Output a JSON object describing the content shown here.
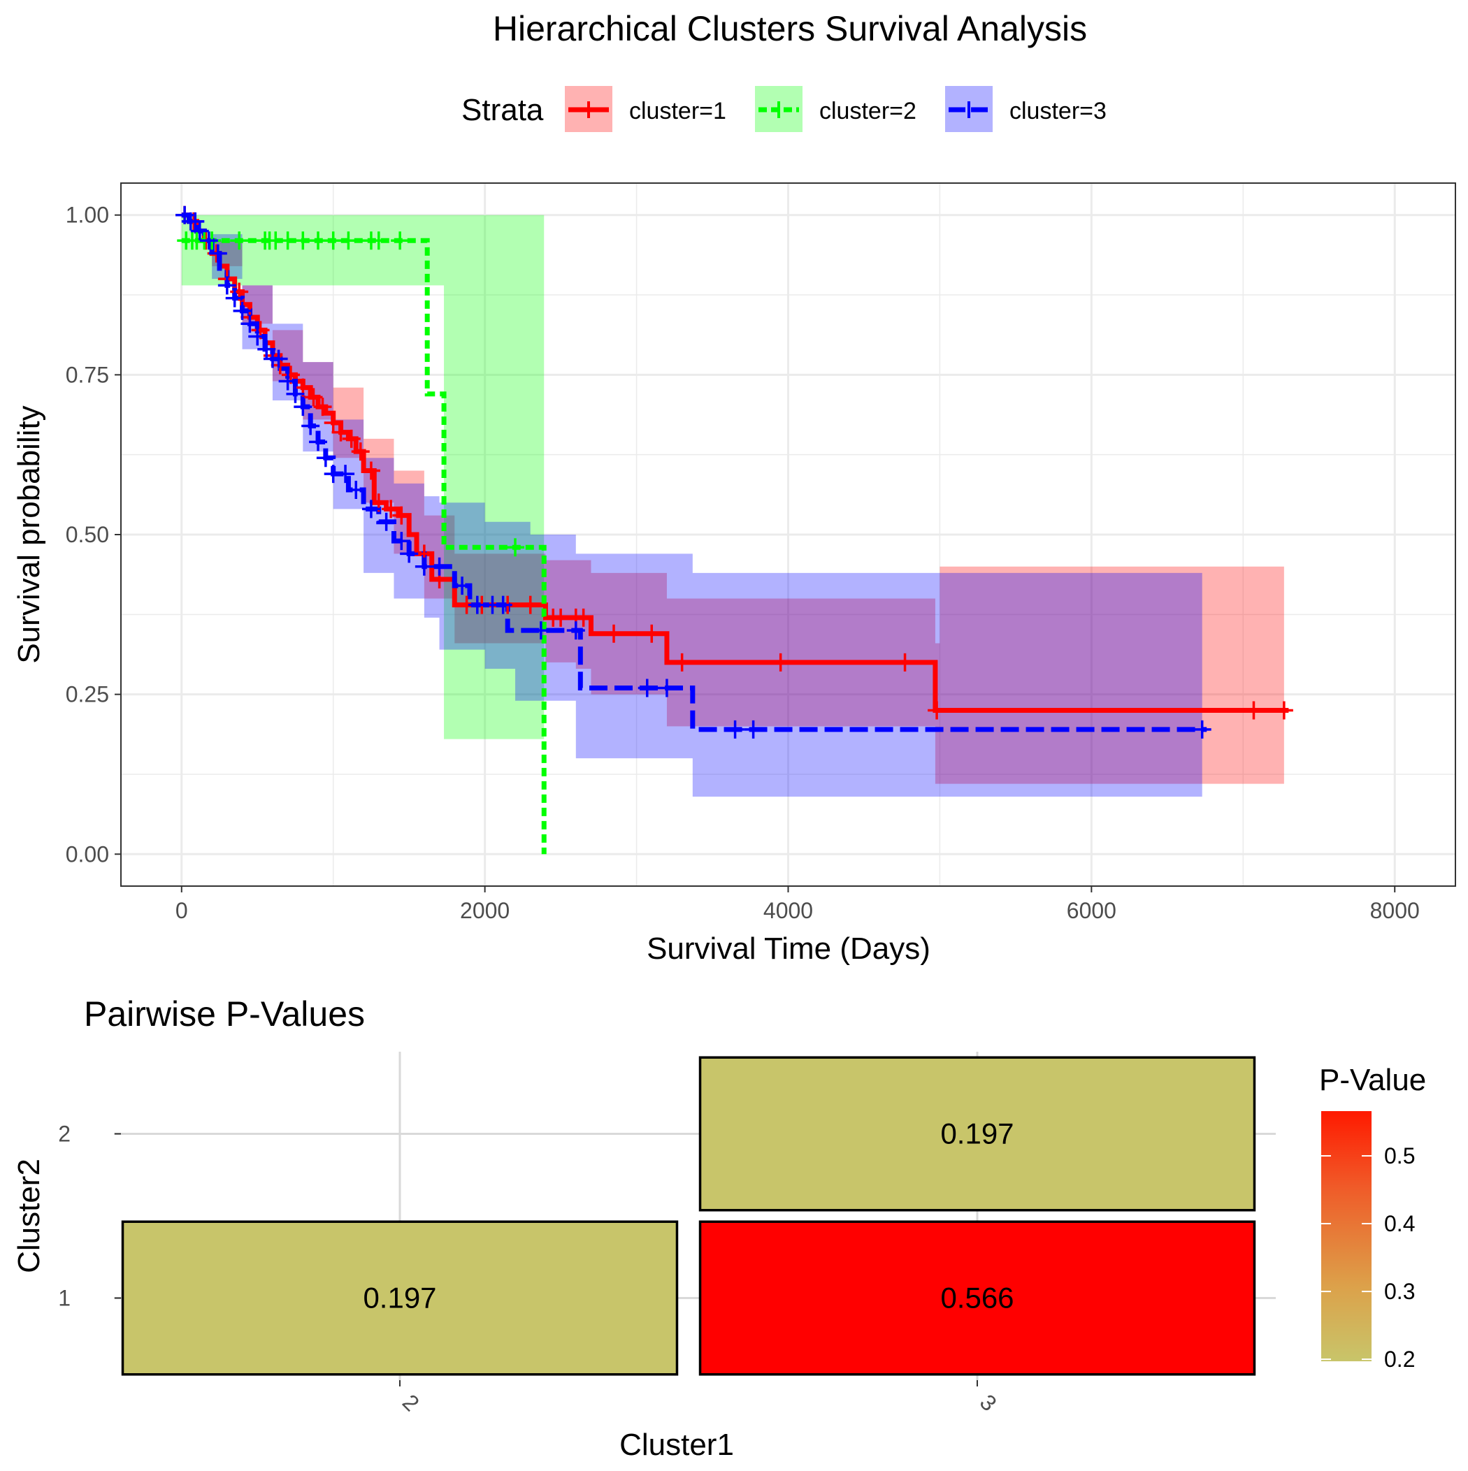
{
  "figure_title": "Hierarchical Clusters Survival Analysis",
  "colors": {
    "cluster1": "#ff0000",
    "cluster2": "#00ff00",
    "cluster3": "#0000ff",
    "grid": "#ebebeb",
    "heat_low": "#c8c56a",
    "heat_high": "#ff0000"
  },
  "chart_data": [
    {
      "type": "line",
      "subtype": "kaplan-meier",
      "title": "",
      "xlabel": "Survival Time (Days)",
      "ylabel": "Survival probability",
      "xlim": [
        -400,
        8400
      ],
      "ylim": [
        -0.05,
        1.05
      ],
      "xticks": [
        0,
        2000,
        4000,
        6000,
        8000
      ],
      "yticks": [
        0,
        0.25,
        0.5,
        0.75,
        1
      ],
      "xtick_labels": [
        "0",
        "2000",
        "4000",
        "6000",
        "8000"
      ],
      "ytick_labels": [
        "0.00",
        "0.25",
        "0.50",
        "0.75",
        "1.00"
      ],
      "grid": true,
      "legend": {
        "title": "Strata",
        "position": "top",
        "labels": [
          "cluster=1",
          "cluster=2",
          "cluster=3"
        ]
      },
      "series": [
        {
          "name": "cluster=1",
          "color": "#ff0000",
          "line": "solid",
          "steps": [
            [
              0,
              1.0
            ],
            [
              50,
              0.99
            ],
            [
              100,
              0.975
            ],
            [
              150,
              0.96
            ],
            [
              200,
              0.94
            ],
            [
              250,
              0.92
            ],
            [
              300,
              0.9
            ],
            [
              350,
              0.88
            ],
            [
              400,
              0.86
            ],
            [
              450,
              0.84
            ],
            [
              500,
              0.82
            ],
            [
              550,
              0.8
            ],
            [
              600,
              0.78
            ],
            [
              650,
              0.765
            ],
            [
              700,
              0.75
            ],
            [
              750,
              0.74
            ],
            [
              800,
              0.73
            ],
            [
              850,
              0.715
            ],
            [
              900,
              0.7
            ],
            [
              950,
              0.69
            ],
            [
              1000,
              0.675
            ],
            [
              1050,
              0.66
            ],
            [
              1100,
              0.65
            ],
            [
              1150,
              0.63
            ],
            [
              1200,
              0.6
            ],
            [
              1270,
              0.55
            ],
            [
              1350,
              0.54
            ],
            [
              1430,
              0.53
            ],
            [
              1500,
              0.5
            ],
            [
              1550,
              0.47
            ],
            [
              1650,
              0.43
            ],
            [
              1800,
              0.39
            ],
            [
              2000,
              0.39
            ],
            [
              2400,
              0.37
            ],
            [
              2700,
              0.345
            ],
            [
              3200,
              0.3
            ],
            [
              4970,
              0.225
            ],
            [
              7300,
              0.225
            ]
          ],
          "ci_upper": [
            [
              0,
              1.0
            ],
            [
              200,
              0.96
            ],
            [
              400,
              0.89
            ],
            [
              600,
              0.82
            ],
            [
              800,
              0.77
            ],
            [
              1000,
              0.73
            ],
            [
              1200,
              0.65
            ],
            [
              1400,
              0.6
            ],
            [
              1600,
              0.53
            ],
            [
              1800,
              0.47
            ],
            [
              2000,
              0.47
            ],
            [
              2400,
              0.46
            ],
            [
              2600,
              0.46
            ],
            [
              2700,
              0.44
            ],
            [
              3200,
              0.4
            ],
            [
              4970,
              0.33
            ],
            [
              5000,
              0.45
            ],
            [
              7270,
              0.45
            ]
          ],
          "ci_lower": [
            [
              0,
              1.0
            ],
            [
              200,
              0.92
            ],
            [
              400,
              0.83
            ],
            [
              600,
              0.74
            ],
            [
              800,
              0.68
            ],
            [
              1000,
              0.62
            ],
            [
              1200,
              0.55
            ],
            [
              1400,
              0.47
            ],
            [
              1600,
              0.4
            ],
            [
              1800,
              0.33
            ],
            [
              2000,
              0.33
            ],
            [
              2400,
              0.3
            ],
            [
              2600,
              0.29
            ],
            [
              2700,
              0.25
            ],
            [
              3200,
              0.2
            ],
            [
              4970,
              0.11
            ],
            [
              7270,
              0.11
            ]
          ],
          "censor_x": [
            20,
            80,
            160,
            230,
            300,
            380,
            450,
            520,
            600,
            650,
            720,
            800,
            870,
            930,
            1000,
            1050,
            1120,
            1180,
            1250,
            1300,
            1380,
            1450,
            1600,
            1700,
            1880,
            1980,
            2150,
            2300,
            2450,
            2500,
            2600,
            2650,
            2850,
            3100,
            3300,
            3950,
            4770,
            4980,
            7070,
            7270
          ]
        },
        {
          "name": "cluster=2",
          "color": "#00ff00",
          "line": "dashed",
          "steps": [
            [
              0,
              0.96
            ],
            [
              1600,
              0.96
            ],
            [
              1620,
              0.72
            ],
            [
              1730,
              0.48
            ],
            [
              2370,
              0.48
            ],
            [
              2390,
              0.0
            ]
          ],
          "ci_upper": [
            [
              0,
              1.0
            ],
            [
              2390,
              1.0
            ]
          ],
          "ci_lower": [
            [
              0,
              0.89
            ],
            [
              1600,
              0.89
            ],
            [
              1730,
              0.18
            ],
            [
              2390,
              0.18
            ]
          ],
          "censor_x": [
            30,
            70,
            100,
            150,
            200,
            380,
            550,
            580,
            620,
            700,
            800,
            900,
            1000,
            1100,
            1250,
            1300,
            1440,
            2200
          ]
        },
        {
          "name": "cluster=3",
          "color": "#0000ff",
          "line": "dashed",
          "steps": [
            [
              0,
              1.0
            ],
            [
              50,
              0.99
            ],
            [
              100,
              0.975
            ],
            [
              150,
              0.96
            ],
            [
              200,
              0.94
            ],
            [
              250,
              0.91
            ],
            [
              300,
              0.89
            ],
            [
              350,
              0.87
            ],
            [
              400,
              0.85
            ],
            [
              450,
              0.83
            ],
            [
              500,
              0.81
            ],
            [
              550,
              0.79
            ],
            [
              600,
              0.775
            ],
            [
              650,
              0.76
            ],
            [
              700,
              0.74
            ],
            [
              750,
              0.72
            ],
            [
              800,
              0.7
            ],
            [
              850,
              0.67
            ],
            [
              900,
              0.645
            ],
            [
              950,
              0.62
            ],
            [
              1000,
              0.595
            ],
            [
              1100,
              0.57
            ],
            [
              1200,
              0.54
            ],
            [
              1300,
              0.52
            ],
            [
              1400,
              0.49
            ],
            [
              1500,
              0.47
            ],
            [
              1600,
              0.45
            ],
            [
              1800,
              0.42
            ],
            [
              1900,
              0.39
            ],
            [
              2150,
              0.35
            ],
            [
              2450,
              0.35
            ],
            [
              2630,
              0.26
            ],
            [
              3350,
              0.26
            ],
            [
              3370,
              0.195
            ],
            [
              6760,
              0.195
            ]
          ],
          "ci_upper": [
            [
              0,
              1.0
            ],
            [
              200,
              0.97
            ],
            [
              400,
              0.89
            ],
            [
              600,
              0.83
            ],
            [
              800,
              0.77
            ],
            [
              1000,
              0.68
            ],
            [
              1200,
              0.62
            ],
            [
              1400,
              0.58
            ],
            [
              1600,
              0.56
            ],
            [
              1700,
              0.55
            ],
            [
              2000,
              0.52
            ],
            [
              2300,
              0.5
            ],
            [
              2600,
              0.47
            ],
            [
              3370,
              0.44
            ],
            [
              6730,
              0.44
            ]
          ],
          "ci_lower": [
            [
              0,
              1.0
            ],
            [
              200,
              0.9
            ],
            [
              400,
              0.79
            ],
            [
              600,
              0.71
            ],
            [
              800,
              0.63
            ],
            [
              1000,
              0.54
            ],
            [
              1200,
              0.44
            ],
            [
              1400,
              0.4
            ],
            [
              1600,
              0.37
            ],
            [
              1700,
              0.32
            ],
            [
              2000,
              0.29
            ],
            [
              2200,
              0.24
            ],
            [
              2600,
              0.15
            ],
            [
              3370,
              0.09
            ],
            [
              6730,
              0.09
            ]
          ],
          "censor_x": [
            20,
            60,
            90,
            120,
            180,
            240,
            300,
            350,
            400,
            450,
            500,
            560,
            600,
            640,
            700,
            750,
            800,
            850,
            900,
            950,
            1000,
            1080,
            1150,
            1250,
            1350,
            1450,
            1500,
            1600,
            1700,
            1850,
            1950,
            2050,
            2120,
            2370,
            2600,
            3070,
            3200,
            3650,
            3770,
            6730
          ]
        }
      ]
    },
    {
      "type": "heatmap",
      "title": "Pairwise P-Values",
      "xlabel": "Cluster1",
      "ylabel": "Cluster2",
      "x_categories": [
        "2",
        "3"
      ],
      "y_categories": [
        "1",
        "2"
      ],
      "cells": [
        {
          "x": "2",
          "y": "1",
          "value": 0.197,
          "label": "0.197"
        },
        {
          "x": "3",
          "y": "1",
          "value": 0.566,
          "label": "0.566"
        },
        {
          "x": "3",
          "y": "2",
          "value": 0.197,
          "label": "0.197"
        }
      ],
      "legend": {
        "title": "P-Value",
        "position": "right",
        "range": [
          0.197,
          0.566
        ],
        "ticks": [
          0.2,
          0.3,
          0.4,
          0.5
        ],
        "tick_labels": [
          "0.2",
          "0.3",
          "0.4",
          "0.5"
        ]
      }
    }
  ]
}
